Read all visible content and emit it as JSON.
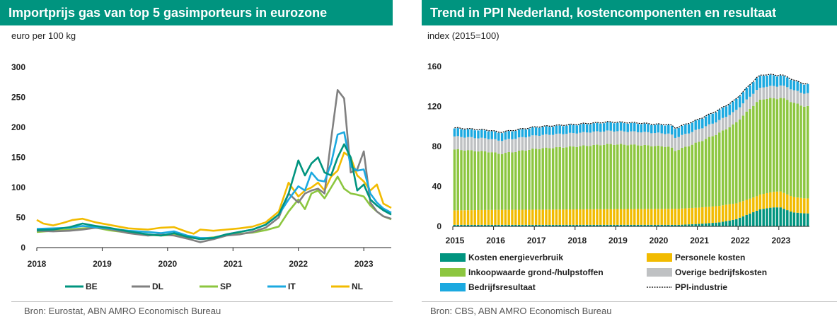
{
  "panels": {
    "left": {
      "title": "Importprijs gas van top 5 gasimporteurs in eurozone",
      "unit": "euro per 100 kg",
      "source": "Bron: Eurostat, ABN AMRO Economisch Bureau"
    },
    "right": {
      "title": "Trend in PPI Nederland, kostencomponenten en resultaat",
      "unit": "index (2015=100)",
      "source": "Bron: CBS, ABN AMRO Economisch Bureau"
    }
  },
  "chart_data": [
    {
      "type": "line",
      "title": "Importprijs gas van top 5 gasimporteurs in eurozone",
      "ylabel": "euro per 100 kg",
      "ylim": [
        0,
        300
      ],
      "yticks": [
        "0",
        "50",
        "100",
        "150",
        "200",
        "250",
        "300"
      ],
      "xlim": [
        2018.0,
        2023.42
      ],
      "xticks": [
        "2018",
        "2019",
        "2020",
        "2021",
        "2022",
        "2023"
      ],
      "grid": false,
      "legend": "bottom",
      "colors": {
        "BE": "#00947f",
        "DL": "#808080",
        "SP": "#8cc63f",
        "IT": "#1ba9e0",
        "NL": "#f2bb00"
      },
      "series": [
        {
          "name": "BE",
          "points": [
            [
              2018.0,
              29
            ],
            [
              2018.25,
              30
            ],
            [
              2018.5,
              34
            ],
            [
              2018.7,
              40
            ],
            [
              2018.9,
              36
            ],
            [
              2019.1,
              33
            ],
            [
              2019.4,
              27
            ],
            [
              2019.7,
              22
            ],
            [
              2019.9,
              20
            ],
            [
              2020.1,
              24
            ],
            [
              2020.3,
              18
            ],
            [
              2020.5,
              14
            ],
            [
              2020.7,
              16
            ],
            [
              2020.9,
              22
            ],
            [
              2021.1,
              26
            ],
            [
              2021.3,
              30
            ],
            [
              2021.5,
              38
            ],
            [
              2021.7,
              55
            ],
            [
              2021.85,
              90
            ],
            [
              2022.0,
              145
            ],
            [
              2022.1,
              120
            ],
            [
              2022.2,
              140
            ],
            [
              2022.3,
              150
            ],
            [
              2022.4,
              125
            ],
            [
              2022.5,
              120
            ],
            [
              2022.6,
              150
            ],
            [
              2022.7,
              172
            ],
            [
              2022.8,
              150
            ],
            [
              2022.9,
              95
            ],
            [
              2023.0,
              105
            ],
            [
              2023.1,
              80
            ],
            [
              2023.2,
              70
            ],
            [
              2023.3,
              62
            ],
            [
              2023.42,
              55
            ]
          ]
        },
        {
          "name": "DL",
          "points": [
            [
              2018.0,
              28
            ],
            [
              2018.25,
              27
            ],
            [
              2018.5,
              28
            ],
            [
              2018.7,
              30
            ],
            [
              2018.9,
              33
            ],
            [
              2019.1,
              31
            ],
            [
              2019.4,
              24
            ],
            [
              2019.7,
              20
            ],
            [
              2019.9,
              22
            ],
            [
              2020.1,
              20
            ],
            [
              2020.3,
              15
            ],
            [
              2020.5,
              9
            ],
            [
              2020.7,
              14
            ],
            [
              2020.9,
              20
            ],
            [
              2021.1,
              22
            ],
            [
              2021.3,
              26
            ],
            [
              2021.5,
              33
            ],
            [
              2021.7,
              50
            ],
            [
              2021.85,
              90
            ],
            [
              2022.0,
              75
            ],
            [
              2022.1,
              90
            ],
            [
              2022.2,
              95
            ],
            [
              2022.3,
              98
            ],
            [
              2022.4,
              90
            ],
            [
              2022.5,
              180
            ],
            [
              2022.6,
              262
            ],
            [
              2022.7,
              248
            ],
            [
              2022.8,
              125
            ],
            [
              2022.9,
              130
            ],
            [
              2023.0,
              160
            ],
            [
              2023.1,
              75
            ],
            [
              2023.2,
              60
            ],
            [
              2023.3,
              52
            ],
            [
              2023.42,
              48
            ]
          ]
        },
        {
          "name": "SP",
          "points": [
            [
              2018.0,
              26
            ],
            [
              2018.25,
              28
            ],
            [
              2018.5,
              30
            ],
            [
              2018.7,
              32
            ],
            [
              2018.9,
              33
            ],
            [
              2019.1,
              29
            ],
            [
              2019.4,
              25
            ],
            [
              2019.7,
              21
            ],
            [
              2019.9,
              20
            ],
            [
              2020.1,
              21
            ],
            [
              2020.3,
              17
            ],
            [
              2020.5,
              15
            ],
            [
              2020.7,
              17
            ],
            [
              2020.9,
              21
            ],
            [
              2021.1,
              23
            ],
            [
              2021.3,
              25
            ],
            [
              2021.5,
              29
            ],
            [
              2021.7,
              35
            ],
            [
              2021.85,
              60
            ],
            [
              2022.0,
              80
            ],
            [
              2022.1,
              64
            ],
            [
              2022.2,
              90
            ],
            [
              2022.3,
              95
            ],
            [
              2022.4,
              82
            ],
            [
              2022.5,
              100
            ],
            [
              2022.6,
              118
            ],
            [
              2022.7,
              98
            ],
            [
              2022.8,
              90
            ],
            [
              2022.9,
              88
            ],
            [
              2023.0,
              85
            ],
            [
              2023.1,
              70
            ],
            [
              2023.2,
              60
            ],
            [
              2023.3,
              52
            ],
            [
              2023.42,
              47
            ]
          ]
        },
        {
          "name": "IT",
          "points": [
            [
              2018.0,
              31
            ],
            [
              2018.25,
              32
            ],
            [
              2018.5,
              33
            ],
            [
              2018.7,
              36
            ],
            [
              2018.9,
              34
            ],
            [
              2019.1,
              32
            ],
            [
              2019.4,
              28
            ],
            [
              2019.7,
              26
            ],
            [
              2019.9,
              24
            ],
            [
              2020.1,
              27
            ],
            [
              2020.3,
              20
            ],
            [
              2020.5,
              16
            ],
            [
              2020.7,
              16
            ],
            [
              2020.9,
              22
            ],
            [
              2021.1,
              26
            ],
            [
              2021.3,
              30
            ],
            [
              2021.5,
              38
            ],
            [
              2021.7,
              55
            ],
            [
              2021.85,
              80
            ],
            [
              2022.0,
              102
            ],
            [
              2022.1,
              95
            ],
            [
              2022.2,
              125
            ],
            [
              2022.3,
              112
            ],
            [
              2022.4,
              110
            ],
            [
              2022.5,
              140
            ],
            [
              2022.6,
              188
            ],
            [
              2022.7,
              192
            ],
            [
              2022.8,
              135
            ],
            [
              2022.9,
              128
            ],
            [
              2023.0,
              130
            ],
            [
              2023.1,
              90
            ],
            [
              2023.2,
              75
            ],
            [
              2023.3,
              65
            ],
            [
              2023.42,
              58
            ]
          ]
        },
        {
          "name": "NL",
          "points": [
            [
              2018.0,
              46
            ],
            [
              2018.1,
              40
            ],
            [
              2018.25,
              37
            ],
            [
              2018.4,
              41
            ],
            [
              2018.55,
              46
            ],
            [
              2018.7,
              48
            ],
            [
              2018.9,
              42
            ],
            [
              2019.1,
              38
            ],
            [
              2019.4,
              32
            ],
            [
              2019.7,
              30
            ],
            [
              2019.9,
              33
            ],
            [
              2020.1,
              34
            ],
            [
              2020.3,
              26
            ],
            [
              2020.4,
              23
            ],
            [
              2020.5,
              30
            ],
            [
              2020.7,
              28
            ],
            [
              2020.9,
              30
            ],
            [
              2021.1,
              32
            ],
            [
              2021.3,
              35
            ],
            [
              2021.5,
              42
            ],
            [
              2021.7,
              60
            ],
            [
              2021.85,
              108
            ],
            [
              2022.0,
              85
            ],
            [
              2022.1,
              95
            ],
            [
              2022.2,
              100
            ],
            [
              2022.3,
              108
            ],
            [
              2022.4,
              95
            ],
            [
              2022.5,
              118
            ],
            [
              2022.6,
              128
            ],
            [
              2022.7,
              158
            ],
            [
              2022.8,
              150
            ],
            [
              2022.9,
              120
            ],
            [
              2023.0,
              110
            ],
            [
              2023.1,
              95
            ],
            [
              2023.2,
              105
            ],
            [
              2023.3,
              73
            ],
            [
              2023.42,
              66
            ]
          ]
        }
      ]
    },
    {
      "type": "bar",
      "stacked": true,
      "title": "Trend in PPI Nederland, kostencomponenten en resultaat",
      "ylabel": "index (2015=100)",
      "ylim": [
        0,
        160
      ],
      "yticks": [
        "0",
        "40",
        "80",
        "120",
        "160"
      ],
      "xticks": [
        "2015",
        "2016",
        "2017",
        "2018",
        "2019",
        "2020",
        "2021",
        "2022",
        "2023"
      ],
      "grid": false,
      "legend": "bottom",
      "start": "2015-01",
      "frequency": "monthly",
      "colors": {
        "energie": "#00947f",
        "personeel": "#f2bb00",
        "inkoop": "#8cc63f",
        "overig": "#bfc1c3",
        "resultaat": "#1ba9e0",
        "ppi": "#000000"
      },
      "series": [
        {
          "key": "energie",
          "name": "Kosten energieverbruik",
          "anchors": [
            [
              2015.0,
              1.5
            ],
            [
              2020.5,
              1.5
            ],
            [
              2021.0,
              2.5
            ],
            [
              2021.5,
              4
            ],
            [
              2021.9,
              7
            ],
            [
              2022.2,
              12
            ],
            [
              2022.5,
              17
            ],
            [
              2022.8,
              19
            ],
            [
              2023.0,
              19
            ],
            [
              2023.3,
              14
            ],
            [
              2023.6,
              13
            ]
          ]
        },
        {
          "key": "personeel",
          "name": "Personele kosten",
          "anchors": [
            [
              2015.0,
              14.5
            ],
            [
              2016.0,
              15
            ],
            [
              2017.0,
              15.2
            ],
            [
              2018.0,
              15.5
            ],
            [
              2019.0,
              15.8
            ],
            [
              2020.0,
              16
            ],
            [
              2021.0,
              16.3
            ],
            [
              2021.7,
              16.5
            ],
            [
              2022.0,
              15.5
            ],
            [
              2022.4,
              14.5
            ],
            [
              2022.8,
              15.5
            ],
            [
              2023.0,
              16
            ],
            [
              2023.3,
              15.5
            ],
            [
              2023.6,
              15
            ]
          ]
        },
        {
          "key": "inkoop",
          "name": "Inkoopwaarde grond-/hulpstoffen",
          "anchors": [
            [
              2015.0,
              61
            ],
            [
              2015.9,
              58
            ],
            [
              2016.1,
              56
            ],
            [
              2017.0,
              61
            ],
            [
              2018.0,
              63
            ],
            [
              2018.8,
              65
            ],
            [
              2019.5,
              64
            ],
            [
              2020.3,
              62
            ],
            [
              2020.4,
              58
            ],
            [
              2020.8,
              63
            ],
            [
              2021.3,
              70
            ],
            [
              2021.8,
              78
            ],
            [
              2022.1,
              86
            ],
            [
              2022.4,
              94
            ],
            [
              2022.6,
              95
            ],
            [
              2022.9,
              93
            ],
            [
              2023.2,
              95
            ],
            [
              2023.6,
              92
            ]
          ]
        },
        {
          "key": "overig",
          "name": "Overige bedrijfskosten",
          "anchors": [
            [
              2015.0,
              13
            ],
            [
              2018.0,
              13.5
            ],
            [
              2020.5,
              13
            ],
            [
              2021.5,
              12.5
            ],
            [
              2022.5,
              12
            ],
            [
              2023.6,
              13
            ]
          ]
        },
        {
          "key": "resultaat",
          "name": "Bedrijfsresultaat",
          "anchors": [
            [
              2015.0,
              8
            ],
            [
              2016.0,
              7.8
            ],
            [
              2017.0,
              8
            ],
            [
              2018.0,
              8.2
            ],
            [
              2019.0,
              8.4
            ],
            [
              2020.0,
              8.2
            ],
            [
              2020.4,
              9
            ],
            [
              2021.0,
              9.5
            ],
            [
              2022.0,
              11
            ],
            [
              2022.5,
              12
            ],
            [
              2023.0,
              10
            ],
            [
              2023.6,
              9
            ]
          ]
        },
        {
          "key": "ppi",
          "name": "PPI-industrie",
          "line": true
        }
      ]
    }
  ]
}
